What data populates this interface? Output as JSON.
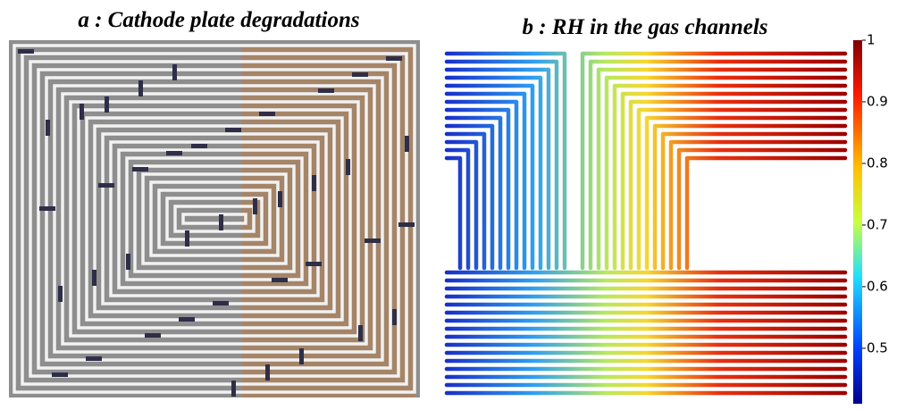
{
  "panels": [
    {
      "title": "a : Cathode plate degradations"
    },
    {
      "title": "b : RH in the gas channels",
      "colorbar": {
        "lim": [
          0.41,
          1
        ],
        "ticks": [
          1,
          0.9,
          0.8,
          0.7,
          0.6,
          0.5
        ]
      }
    }
  ]
}
